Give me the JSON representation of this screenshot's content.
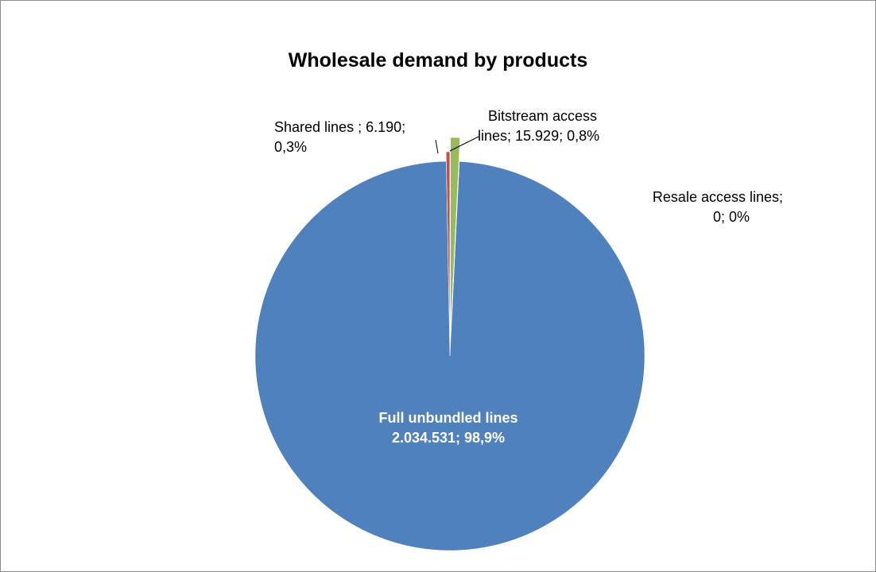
{
  "chart_data": {
    "type": "pie",
    "title": "Wholesale demand by products",
    "slices": [
      {
        "name": "Full unbundled lines",
        "value": 2034531,
        "value_label": "2.034.531",
        "percent_label": "98,9%",
        "color": "#4f81bd"
      },
      {
        "name": "Shared lines ",
        "value": 6190,
        "value_label": "6.190",
        "percent_label": "0,3%",
        "color": "#c0504d"
      },
      {
        "name": "Bitstream access lines",
        "value": 15929,
        "value_label": "15.929",
        "percent_label": "0,8%",
        "color": "#9bbb59"
      },
      {
        "name": "Resale access lines",
        "value": 0,
        "value_label": "0",
        "percent_label": "0%",
        "color": "#8064a2"
      }
    ],
    "labels": {
      "full_line1": "Full unbundled lines",
      "full_line2": "2.034.531; 98,9%",
      "shared_line1": "Shared lines ; 6.190;",
      "shared_line2": "0,3%",
      "bitstream_line1": "Bitstream access",
      "bitstream_line2": "lines; 15.929; 0,8%",
      "resale_line1": "Resale access lines;",
      "resale_line2": "0; 0%"
    },
    "legend": "none"
  }
}
